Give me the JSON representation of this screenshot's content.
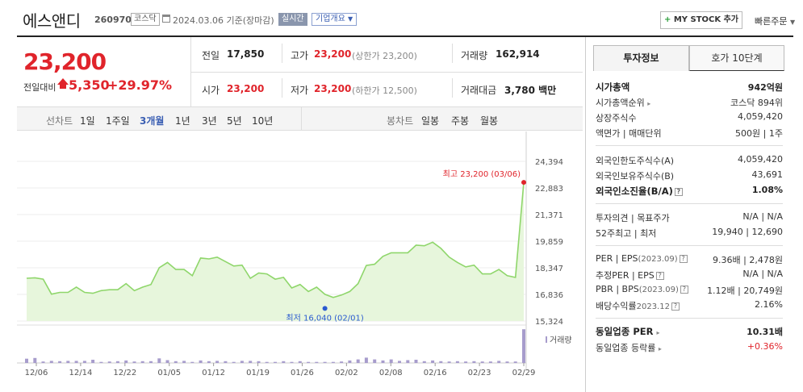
{
  "header": {
    "title": "에스앤디",
    "code": "260970",
    "market": "코스닥",
    "date_text": "2024.03.06 기준(장마감)",
    "realtime": "실시간",
    "company_overview": "기업개요",
    "mystock": "MY STOCK 추가",
    "quick_order": "빠른주문"
  },
  "price": {
    "current": "23,200",
    "change_label": "전일대비",
    "change": "5,350",
    "change_pct": "+29.97%",
    "prev_close_label": "전일",
    "prev_close": "17,850",
    "open_label": "시가",
    "open": "23,200",
    "high_label": "고가",
    "high": "23,200",
    "high_limit": "(상한가 23,200)",
    "low_label": "저가",
    "low": "23,200",
    "low_limit": "(하한가 12,500)",
    "volume_label": "거래량",
    "volume": "162,914",
    "amount_label": "거래대금",
    "amount": "3,780 백만"
  },
  "period_bar": {
    "line_chart_label": "선차트",
    "periods": [
      "1일",
      "1주일",
      "3개월",
      "1년",
      "3년",
      "5년",
      "10년"
    ],
    "selected": 2,
    "candle_label": "봉차트",
    "candles": [
      "일봉",
      "주봉",
      "월봉"
    ]
  },
  "chart_data": {
    "type": "line",
    "x_ticks": [
      "12/06",
      "12/14",
      "12/22",
      "01/05",
      "01/12",
      "01/19",
      "01/26",
      "02/02",
      "02/08",
      "02/16",
      "02/23",
      "02/29"
    ],
    "y_ticks": [
      "24,394",
      "22,883",
      "21,371",
      "19,859",
      "18,347",
      "16,836",
      "15,324"
    ],
    "ylim": [
      15324,
      24394
    ],
    "values": [
      17750,
      17780,
      17700,
      16850,
      16950,
      16950,
      17250,
      16950,
      16900,
      17050,
      17100,
      17100,
      17450,
      17050,
      17250,
      17400,
      18350,
      18650,
      18250,
      18250,
      17900,
      18900,
      18850,
      18950,
      18700,
      18450,
      18500,
      17750,
      18050,
      18000,
      17700,
      17800,
      17200,
      17400,
      17000,
      17250,
      16840,
      16660,
      16800,
      17000,
      17450,
      18480,
      18550,
      19000,
      19200,
      19200,
      19200,
      19630,
      19600,
      19800,
      19450,
      18950,
      18650,
      18400,
      18500,
      18000,
      18000,
      18250,
      17900,
      17800,
      23200
    ],
    "volume": [
      0.12,
      0.14,
      0.04,
      0.06,
      0.05,
      0.06,
      0.06,
      0.06,
      0.09,
      0.03,
      0.04,
      0.05,
      0.07,
      0.04,
      0.05,
      0.05,
      0.13,
      0.08,
      0.05,
      0.06,
      0.03,
      0.07,
      0.05,
      0.06,
      0.05,
      0.03,
      0.06,
      0.06,
      0.05,
      0.03,
      0.03,
      0.05,
      0.03,
      0.05,
      0.03,
      0.03,
      0.03,
      0.03,
      0.04,
      0.07,
      0.1,
      0.15,
      0.1,
      0.07,
      0.1,
      0.06,
      0.08,
      0.09,
      0.05,
      0.07,
      0.05,
      0.04,
      0.05,
      0.04,
      0.05,
      0.04,
      0.04,
      0.06,
      0.04,
      0.04,
      0.95
    ],
    "high_label": "최고 23,200 (03/06)",
    "low_label": "최저 16,040 (02/01)",
    "low_value": 16040,
    "low_index": 36,
    "volume_legend": "거래량",
    "line_color": "#8fd66b",
    "fill_color": "#e7f6dc",
    "volume_color": "#a79ccc"
  },
  "invest": {
    "tab1": "투자정보",
    "tab2": "호가 10단계",
    "market_cap_label": "시가총액",
    "market_cap": "942억원",
    "cap_rank_label": "시가총액순위",
    "cap_rank": "코스닥 894위",
    "shares_label": "상장주식수",
    "shares": "4,059,420",
    "par_label": "액면가",
    "trade_unit_label": "매매단위",
    "par": "500원",
    "trade_unit": "1주",
    "foreign_limit_label": "외국인한도주식수(A)",
    "foreign_limit": "4,059,420",
    "foreign_hold_label": "외국인보유주식수(B)",
    "foreign_hold": "43,691",
    "foreign_ratio_label": "외국인소진율(B/A)",
    "foreign_ratio": "1.08%",
    "opinion_label": "투자의견",
    "target_label": "목표주가",
    "opinion": "N/A",
    "target": "N/A",
    "w52_high_label": "52주최고",
    "w52_low_label": "최저",
    "w52_high": "19,940",
    "w52_low": "12,690",
    "per_label": "PER",
    "eps_label": "EPS",
    "eps_period": "(2023.09)",
    "per": "9.36배",
    "eps": "2,478원",
    "est_per_label": "추정PER",
    "est_eps_label": "EPS",
    "est_per": "N/A",
    "est_eps": "N/A",
    "pbr_label": "PBR",
    "bps_label": "BPS",
    "bps_period": "(2023.09)",
    "pbr": "1.12배",
    "bps": "20,749원",
    "div_label": "배당수익률",
    "div_period": "2023.12",
    "div": "2.16%",
    "ind_per_label": "동일업종 PER",
    "ind_per": "10.31배",
    "ind_rate_label": "동일업종 등락률",
    "ind_rate": "+0.36%"
  }
}
